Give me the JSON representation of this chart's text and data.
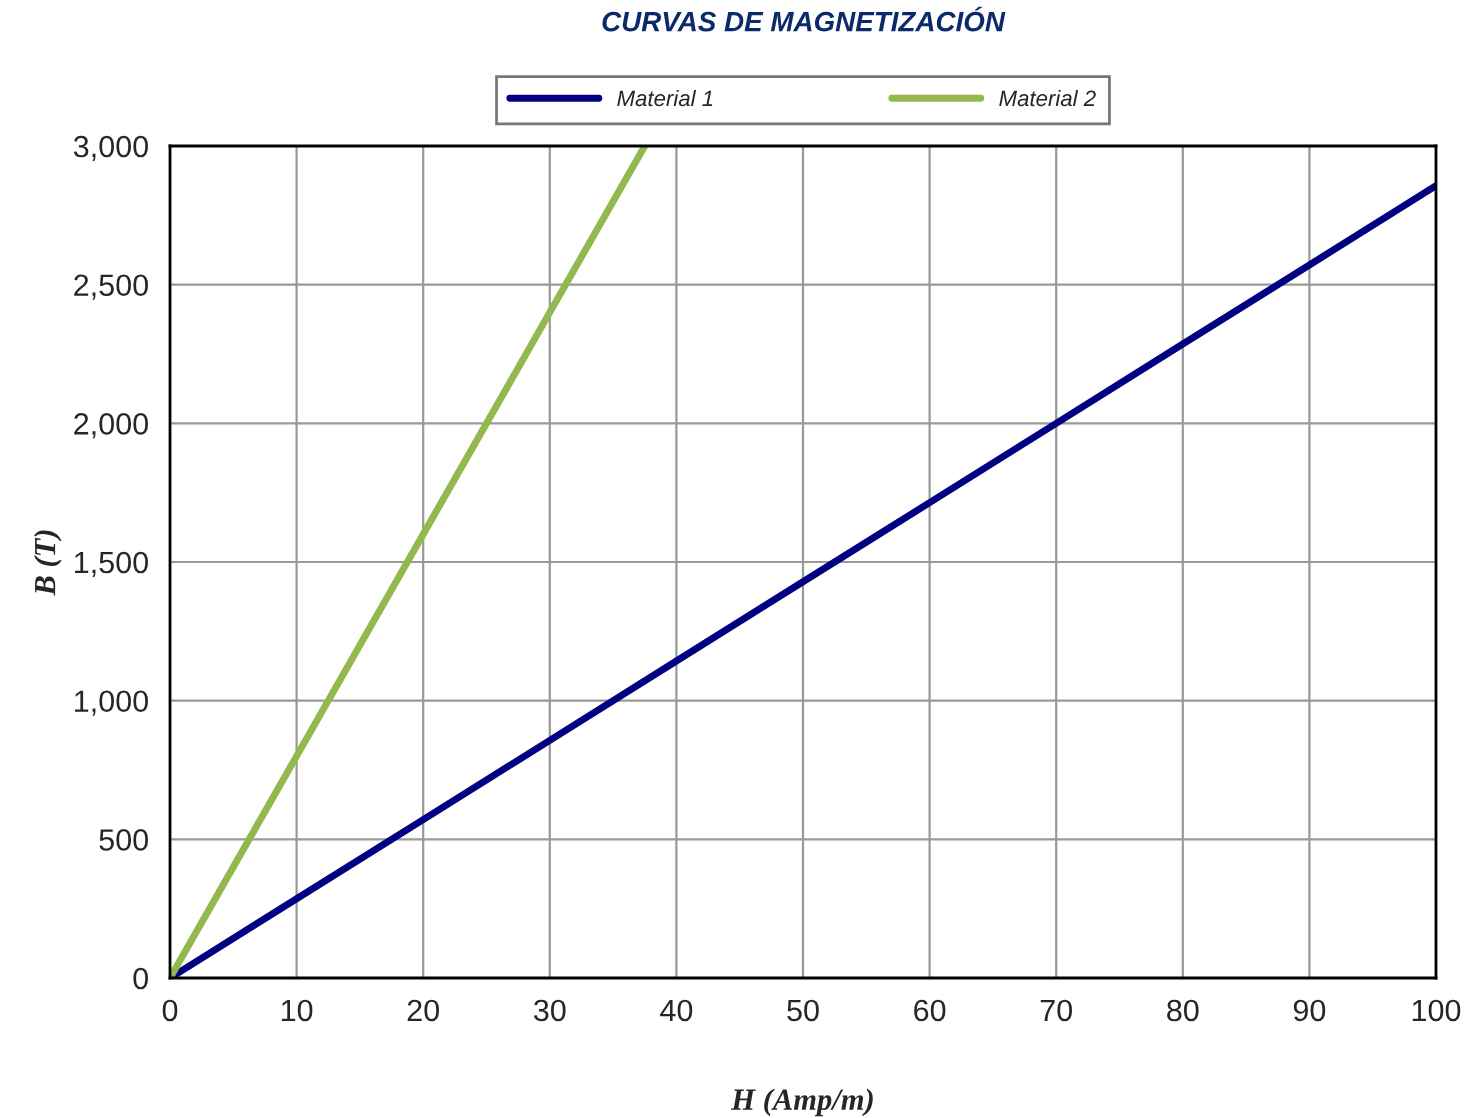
{
  "chart_data": {
    "type": "line",
    "title": "CURVAS DE MAGNETIZACIÓN",
    "xlabel": "H (Amp/m)",
    "ylabel": "B (T)",
    "series": [
      {
        "name": "Material 1",
        "color": "#000080",
        "x": [
          0,
          10,
          20,
          30,
          40,
          50,
          60,
          70,
          80,
          90,
          100
        ],
        "values": [
          0,
          286,
          571,
          857,
          1143,
          1429,
          1714,
          2000,
          2286,
          2571,
          2857
        ]
      },
      {
        "name": "Material 2",
        "color": "#92b84e",
        "x": [
          0,
          10,
          20,
          30,
          37.5
        ],
        "values": [
          0,
          800,
          1600,
          2400,
          3000
        ]
      }
    ],
    "xlim": [
      0,
      100
    ],
    "xticks": [
      0,
      10,
      20,
      30,
      40,
      50,
      60,
      70,
      80,
      90,
      100
    ],
    "ylim": [
      0,
      3000
    ],
    "yticks": [
      0,
      500,
      {
        "value": 1000,
        "label": "1,000"
      },
      {
        "value": 1500,
        "label": "1,500"
      },
      {
        "value": 2000,
        "label": "2,000"
      },
      {
        "value": 2500,
        "label": "2,500"
      },
      {
        "value": 3000,
        "label": "3,000"
      }
    ],
    "grid": true,
    "legend": "top",
    "marker": "none",
    "line_style": "solid"
  }
}
